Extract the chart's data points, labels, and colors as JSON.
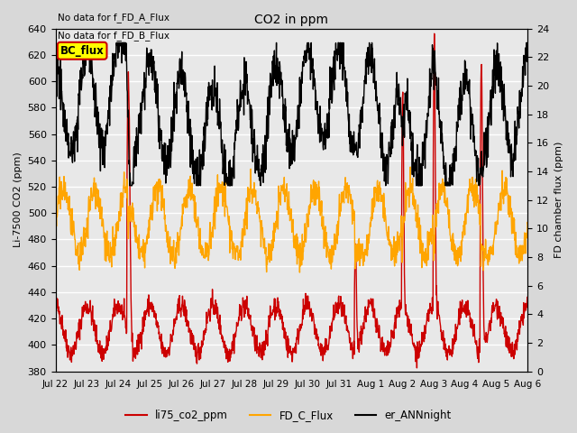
{
  "title": "CO2 in ppm",
  "annotation_lines": [
    "No data for f_FD_A_Flux",
    "No data for f_FD_B_Flux"
  ],
  "ylabel_left": "Li-7500 CO2 (ppm)",
  "ylabel_right": "FD chamber flux (ppm)",
  "ylim_left": [
    380,
    640
  ],
  "ylim_right": [
    0,
    24
  ],
  "yticks_left": [
    380,
    400,
    420,
    440,
    460,
    480,
    500,
    520,
    540,
    560,
    580,
    600,
    620,
    640
  ],
  "yticks_right": [
    0,
    2,
    4,
    6,
    8,
    10,
    12,
    14,
    16,
    18,
    20,
    22,
    24
  ],
  "xticklabels": [
    "Jul 22",
    "Jul 23",
    "Jul 24",
    "Jul 25",
    "Jul 26",
    "Jul 27",
    "Jul 28",
    "Jul 29",
    "Jul 30",
    "Jul 31",
    "Aug 1",
    "Aug 2",
    "Aug 3",
    "Aug 4",
    "Aug 5",
    "Aug 6"
  ],
  "background_color": "#d8d8d8",
  "plot_background": "#e8e8e8",
  "grid_color": "#ffffff",
  "legend_entries": [
    {
      "label": "li75_co2_ppm",
      "color": "#cc0000",
      "lw": 1.0
    },
    {
      "label": "FD_C_Flux",
      "color": "#ffa500",
      "lw": 1.0
    },
    {
      "label": "er_ANNnight",
      "color": "#000000",
      "lw": 1.0
    }
  ],
  "bc_flux_box": {
    "text": "BC_flux",
    "facecolor": "#ffff00",
    "edgecolor": "#cc0000"
  },
  "n_days": 15,
  "seed": 42
}
